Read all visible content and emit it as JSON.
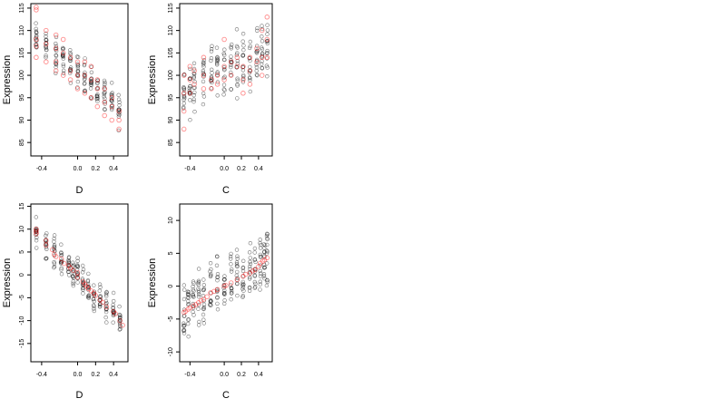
{
  "chart_data": [
    {
      "id": "p1",
      "type": "scatter",
      "xlabel": "D",
      "ylabel": "Expression",
      "xlim": [
        -0.52,
        0.56
      ],
      "ylim": [
        82,
        116
      ],
      "xticks": [
        {
          "v": -0.4,
          "t": "-0.4"
        },
        {
          "v": 0.0,
          "t": "0.0"
        },
        {
          "v": 0.2,
          "t": "0.2"
        },
        {
          "v": 0.4,
          "t": "0.4"
        }
      ],
      "yticks": [
        {
          "v": 85,
          "t": "85"
        },
        {
          "v": 90,
          "t": "90"
        },
        {
          "v": 95,
          "t": "95"
        },
        {
          "v": 100,
          "t": "100"
        },
        {
          "v": 105,
          "t": "105"
        },
        {
          "v": 110,
          "t": "110"
        },
        {
          "v": 115,
          "t": "115"
        }
      ],
      "groups_x": [
        -0.46,
        -0.35,
        -0.24,
        -0.16,
        -0.08,
        0.0,
        0.08,
        0.15,
        0.22,
        0.3,
        0.38,
        0.46
      ],
      "trend": [
        108,
        106.5,
        104.5,
        103.5,
        102,
        101,
        100,
        98.5,
        97,
        95.5,
        94,
        92
      ],
      "spread": 4.0,
      "red_points": [
        [
          -0.46,
          115.2
        ],
        [
          -0.46,
          114.6
        ],
        [
          -0.46,
          108
        ],
        [
          -0.46,
          106.5
        ],
        [
          -0.46,
          104
        ],
        [
          -0.35,
          110
        ],
        [
          -0.35,
          107
        ],
        [
          -0.35,
          103
        ],
        [
          -0.24,
          109
        ],
        [
          -0.24,
          106
        ],
        [
          -0.24,
          103
        ],
        [
          -0.24,
          101
        ],
        [
          -0.16,
          108
        ],
        [
          -0.16,
          105
        ],
        [
          -0.16,
          100
        ],
        [
          -0.08,
          104
        ],
        [
          -0.08,
          101
        ],
        [
          -0.08,
          99
        ],
        [
          0.0,
          103
        ],
        [
          0.0,
          100
        ],
        [
          0.0,
          97
        ],
        [
          0.08,
          103
        ],
        [
          0.08,
          100
        ],
        [
          0.08,
          96
        ],
        [
          0.15,
          102
        ],
        [
          0.15,
          99
        ],
        [
          0.15,
          95
        ],
        [
          0.22,
          99
        ],
        [
          0.22,
          97
        ],
        [
          0.22,
          93
        ],
        [
          0.3,
          97
        ],
        [
          0.3,
          94
        ],
        [
          0.3,
          91
        ],
        [
          0.38,
          95
        ],
        [
          0.38,
          93
        ],
        [
          0.38,
          90
        ],
        [
          0.46,
          92
        ],
        [
          0.46,
          90
        ],
        [
          0.46,
          88
        ]
      ]
    },
    {
      "id": "p2",
      "type": "scatter",
      "xlabel": "C",
      "ylabel": "Expression",
      "xlim": [
        -0.52,
        0.56
      ],
      "ylim": [
        82,
        116
      ],
      "xticks": [
        {
          "v": -0.4,
          "t": "-0.4"
        },
        {
          "v": 0.0,
          "t": "0.0"
        },
        {
          "v": 0.2,
          "t": "0.2"
        },
        {
          "v": 0.4,
          "t": "0.4"
        }
      ],
      "yticks": [
        {
          "v": 85,
          "t": "85"
        },
        {
          "v": 90,
          "t": "90"
        },
        {
          "v": 95,
          "t": "95"
        },
        {
          "v": 100,
          "t": "100"
        },
        {
          "v": 105,
          "t": "105"
        },
        {
          "v": 110,
          "t": "110"
        },
        {
          "v": 115,
          "t": "115"
        }
      ],
      "groups_x": [
        -0.47,
        -0.4,
        -0.35,
        -0.24,
        -0.15,
        -0.08,
        0.0,
        0.08,
        0.15,
        0.22,
        0.3,
        0.38,
        0.44,
        0.5
      ],
      "trend": [
        96,
        98,
        99,
        100,
        100.5,
        101,
        101.5,
        102,
        103,
        103.5,
        104,
        104.5,
        105,
        105.5
      ],
      "spread": 7.0,
      "red_points": [
        [
          -0.47,
          100
        ],
        [
          -0.47,
          96
        ],
        [
          -0.47,
          92
        ],
        [
          -0.47,
          88
        ],
        [
          -0.4,
          102
        ],
        [
          -0.4,
          99
        ],
        [
          -0.4,
          96
        ],
        [
          -0.35,
          101
        ],
        [
          -0.35,
          98
        ],
        [
          -0.24,
          104
        ],
        [
          -0.24,
          100
        ],
        [
          -0.24,
          97
        ],
        [
          -0.15,
          99
        ],
        [
          -0.15,
          97
        ],
        [
          -0.08,
          100
        ],
        [
          -0.08,
          98
        ],
        [
          0.0,
          108
        ],
        [
          0.0,
          102
        ],
        [
          0.0,
          99
        ],
        [
          0.08,
          103
        ],
        [
          0.08,
          100
        ],
        [
          0.15,
          104
        ],
        [
          0.15,
          102
        ],
        [
          0.22,
          102
        ],
        [
          0.22,
          99
        ],
        [
          0.22,
          96
        ],
        [
          0.3,
          104
        ],
        [
          0.3,
          101
        ],
        [
          0.3,
          98
        ],
        [
          0.38,
          106
        ],
        [
          0.38,
          103
        ],
        [
          0.44,
          110
        ],
        [
          0.44,
          104
        ],
        [
          0.44,
          100
        ],
        [
          0.5,
          113
        ],
        [
          0.5,
          108
        ],
        [
          0.5,
          104
        ]
      ]
    },
    {
      "id": "p3",
      "type": "scatter",
      "xlabel": "D",
      "ylabel": "Expression",
      "xlim": [
        -0.52,
        0.56
      ],
      "ylim": [
        -19,
        15.5
      ],
      "xticks": [
        {
          "v": -0.4,
          "t": "-0.4"
        },
        {
          "v": 0.0,
          "t": "0.0"
        },
        {
          "v": 0.2,
          "t": "0.2"
        },
        {
          "v": 0.4,
          "t": "0.4"
        }
      ],
      "yticks": [
        {
          "v": -15,
          "t": "-15"
        },
        {
          "v": -10,
          "t": "-10"
        },
        {
          "v": -5,
          "t": "-5"
        },
        {
          "v": 0,
          "t": "0"
        },
        {
          "v": 5,
          "t": "5"
        },
        {
          "v": 10,
          "t": "10"
        },
        {
          "v": 15,
          "t": "15"
        }
      ],
      "groups_x": [
        -0.46,
        -0.35,
        -0.26,
        -0.18,
        -0.1,
        -0.05,
        0.0,
        0.06,
        0.12,
        0.18,
        0.25,
        0.32,
        0.4,
        0.47
      ],
      "trend": [
        9.5,
        7,
        5,
        3.5,
        2,
        1,
        0,
        -1.5,
        -3,
        -4.5,
        -5.5,
        -7,
        -8,
        -10
      ],
      "spread": 3.5,
      "red_points": [
        [
          -0.46,
          10
        ],
        [
          -0.46,
          9.5
        ],
        [
          -0.46,
          9
        ],
        [
          -0.35,
          7.5
        ],
        [
          -0.35,
          6.5
        ],
        [
          -0.28,
          5.5
        ],
        [
          -0.26,
          4.5
        ],
        [
          -0.24,
          4
        ],
        [
          -0.18,
          3.5
        ],
        [
          -0.15,
          2.5
        ],
        [
          -0.1,
          2
        ],
        [
          -0.08,
          1.5
        ],
        [
          -0.05,
          1
        ],
        [
          0.0,
          0.5
        ],
        [
          0.0,
          -0.5
        ],
        [
          0.06,
          -1.5
        ],
        [
          0.08,
          -2
        ],
        [
          0.1,
          -2.5
        ],
        [
          0.12,
          -3
        ],
        [
          0.15,
          -3.5
        ],
        [
          0.18,
          -4
        ],
        [
          0.2,
          -4.5
        ],
        [
          0.25,
          -5.5
        ],
        [
          0.28,
          -6
        ],
        [
          0.32,
          -7
        ],
        [
          0.4,
          -8
        ],
        [
          0.42,
          -8.5
        ],
        [
          0.47,
          -10
        ],
        [
          0.5,
          -11
        ]
      ]
    },
    {
      "id": "p4",
      "type": "scatter",
      "xlabel": "C",
      "ylabel": "Expression",
      "xlim": [
        -0.52,
        0.56
      ],
      "ylim": [
        -11.5,
        12.5
      ],
      "xticks": [
        {
          "v": -0.4,
          "t": "-0.4"
        },
        {
          "v": 0.0,
          "t": "0.0"
        },
        {
          "v": 0.2,
          "t": "0.2"
        },
        {
          "v": 0.4,
          "t": "0.4"
        }
      ],
      "yticks": [
        {
          "v": -10,
          "t": "-10"
        },
        {
          "v": -5,
          "t": "-5"
        },
        {
          "v": 0,
          "t": "0"
        },
        {
          "v": 5,
          "t": "5"
        },
        {
          "v": 10,
          "t": "10"
        }
      ],
      "groups_x": [
        -0.47,
        -0.42,
        -0.36,
        -0.3,
        -0.24,
        -0.16,
        -0.08,
        0.0,
        0.08,
        0.15,
        0.22,
        0.3,
        0.36,
        0.42,
        0.47,
        0.5
      ],
      "trend": [
        -4,
        -3.5,
        -3,
        -2.5,
        -2,
        -1,
        -0.5,
        0,
        0.5,
        1,
        1.5,
        2,
        2.5,
        3.5,
        4,
        4.3
      ],
      "spread": 5.0,
      "red_points": [
        [
          -0.47,
          -4
        ],
        [
          -0.45,
          -3.8
        ],
        [
          -0.42,
          -3.5
        ],
        [
          -0.4,
          -3.3
        ],
        [
          -0.36,
          -3
        ],
        [
          -0.33,
          -2.8
        ],
        [
          -0.3,
          -2.5
        ],
        [
          -0.27,
          -2.2
        ],
        [
          -0.24,
          -2
        ],
        [
          -0.2,
          -1.6
        ],
        [
          -0.16,
          -1
        ],
        [
          -0.12,
          -0.8
        ],
        [
          -0.08,
          -0.5
        ],
        [
          0.0,
          0
        ],
        [
          0.02,
          0.1
        ],
        [
          0.08,
          0.5
        ],
        [
          0.15,
          1
        ],
        [
          0.22,
          1.5
        ],
        [
          0.25,
          1.8
        ],
        [
          0.3,
          2
        ],
        [
          0.33,
          2.3
        ],
        [
          0.36,
          2.5
        ],
        [
          0.4,
          3
        ],
        [
          0.42,
          3.5
        ],
        [
          0.45,
          3.8
        ],
        [
          0.47,
          4
        ],
        [
          0.5,
          4.3
        ]
      ]
    }
  ]
}
